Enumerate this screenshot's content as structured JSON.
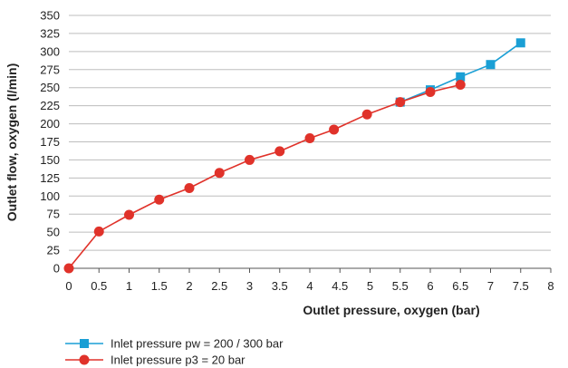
{
  "chart_data": {
    "type": "line",
    "title": "",
    "xlabel": "Outlet pressure, oxygen (bar)",
    "ylabel": "Outlet flow, oxygen (l/min)",
    "xlim": [
      0,
      8
    ],
    "ylim": [
      0,
      350
    ],
    "x_ticks": [
      0,
      0.5,
      1,
      1.5,
      2,
      2.5,
      3,
      3.5,
      4,
      4.5,
      5,
      5.5,
      6,
      6.5,
      7,
      7.5,
      8
    ],
    "y_ticks": [
      0,
      25,
      50,
      75,
      100,
      125,
      150,
      175,
      200,
      225,
      250,
      275,
      300,
      325,
      350
    ],
    "grid": "horizontal",
    "legend_position": "bottom-left",
    "series": [
      {
        "name": "Inlet pressure pw = 200 / 300 bar",
        "color": "#1a9fd5",
        "marker": "square",
        "points": [
          [
            5.5,
            230
          ],
          [
            6,
            247
          ],
          [
            6.5,
            265
          ],
          [
            7,
            282
          ],
          [
            7.5,
            312
          ]
        ]
      },
      {
        "name": "Inlet pressure p3 = 20 bar",
        "color": "#e0322a",
        "marker": "circle",
        "points": [
          [
            0,
            0
          ],
          [
            0.5,
            51
          ],
          [
            1,
            74
          ],
          [
            1.5,
            95
          ],
          [
            2,
            111
          ],
          [
            2.5,
            132
          ],
          [
            3,
            150
          ],
          [
            3.5,
            162
          ],
          [
            4,
            180
          ],
          [
            4.4,
            192
          ],
          [
            4.95,
            213
          ],
          [
            5.5,
            230
          ],
          [
            6,
            244
          ],
          [
            6.5,
            254
          ]
        ]
      }
    ]
  }
}
